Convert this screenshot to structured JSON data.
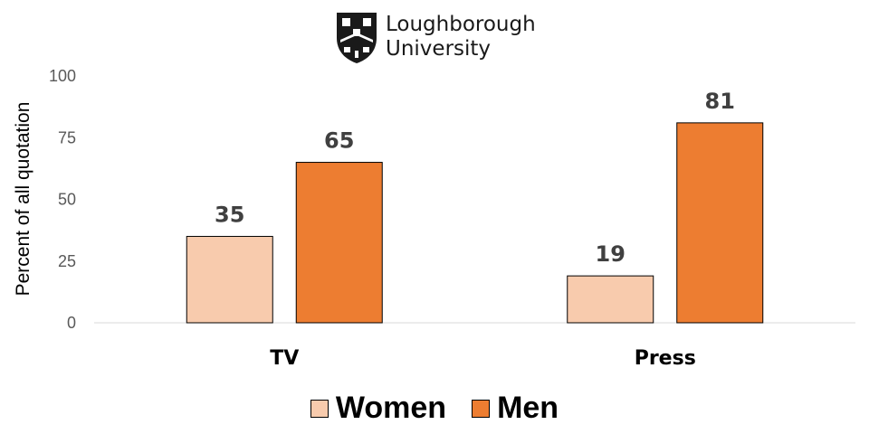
{
  "logo": {
    "name": "Loughborough\nUniversity"
  },
  "chart_data": {
    "type": "bar",
    "categories": [
      "TV",
      "Press"
    ],
    "series": [
      {
        "name": "Women",
        "values": [
          35,
          19
        ],
        "color": "#F8CBAD"
      },
      {
        "name": "Men",
        "values": [
          65,
          81
        ],
        "color": "#ED7D31"
      }
    ],
    "ylabel": "Percent of all quotation",
    "xlabel": "",
    "ylim": [
      0,
      100
    ],
    "yticks": [
      0,
      25,
      50,
      75,
      100
    ],
    "data_labels": true,
    "grid": false,
    "legend": "bottom"
  }
}
